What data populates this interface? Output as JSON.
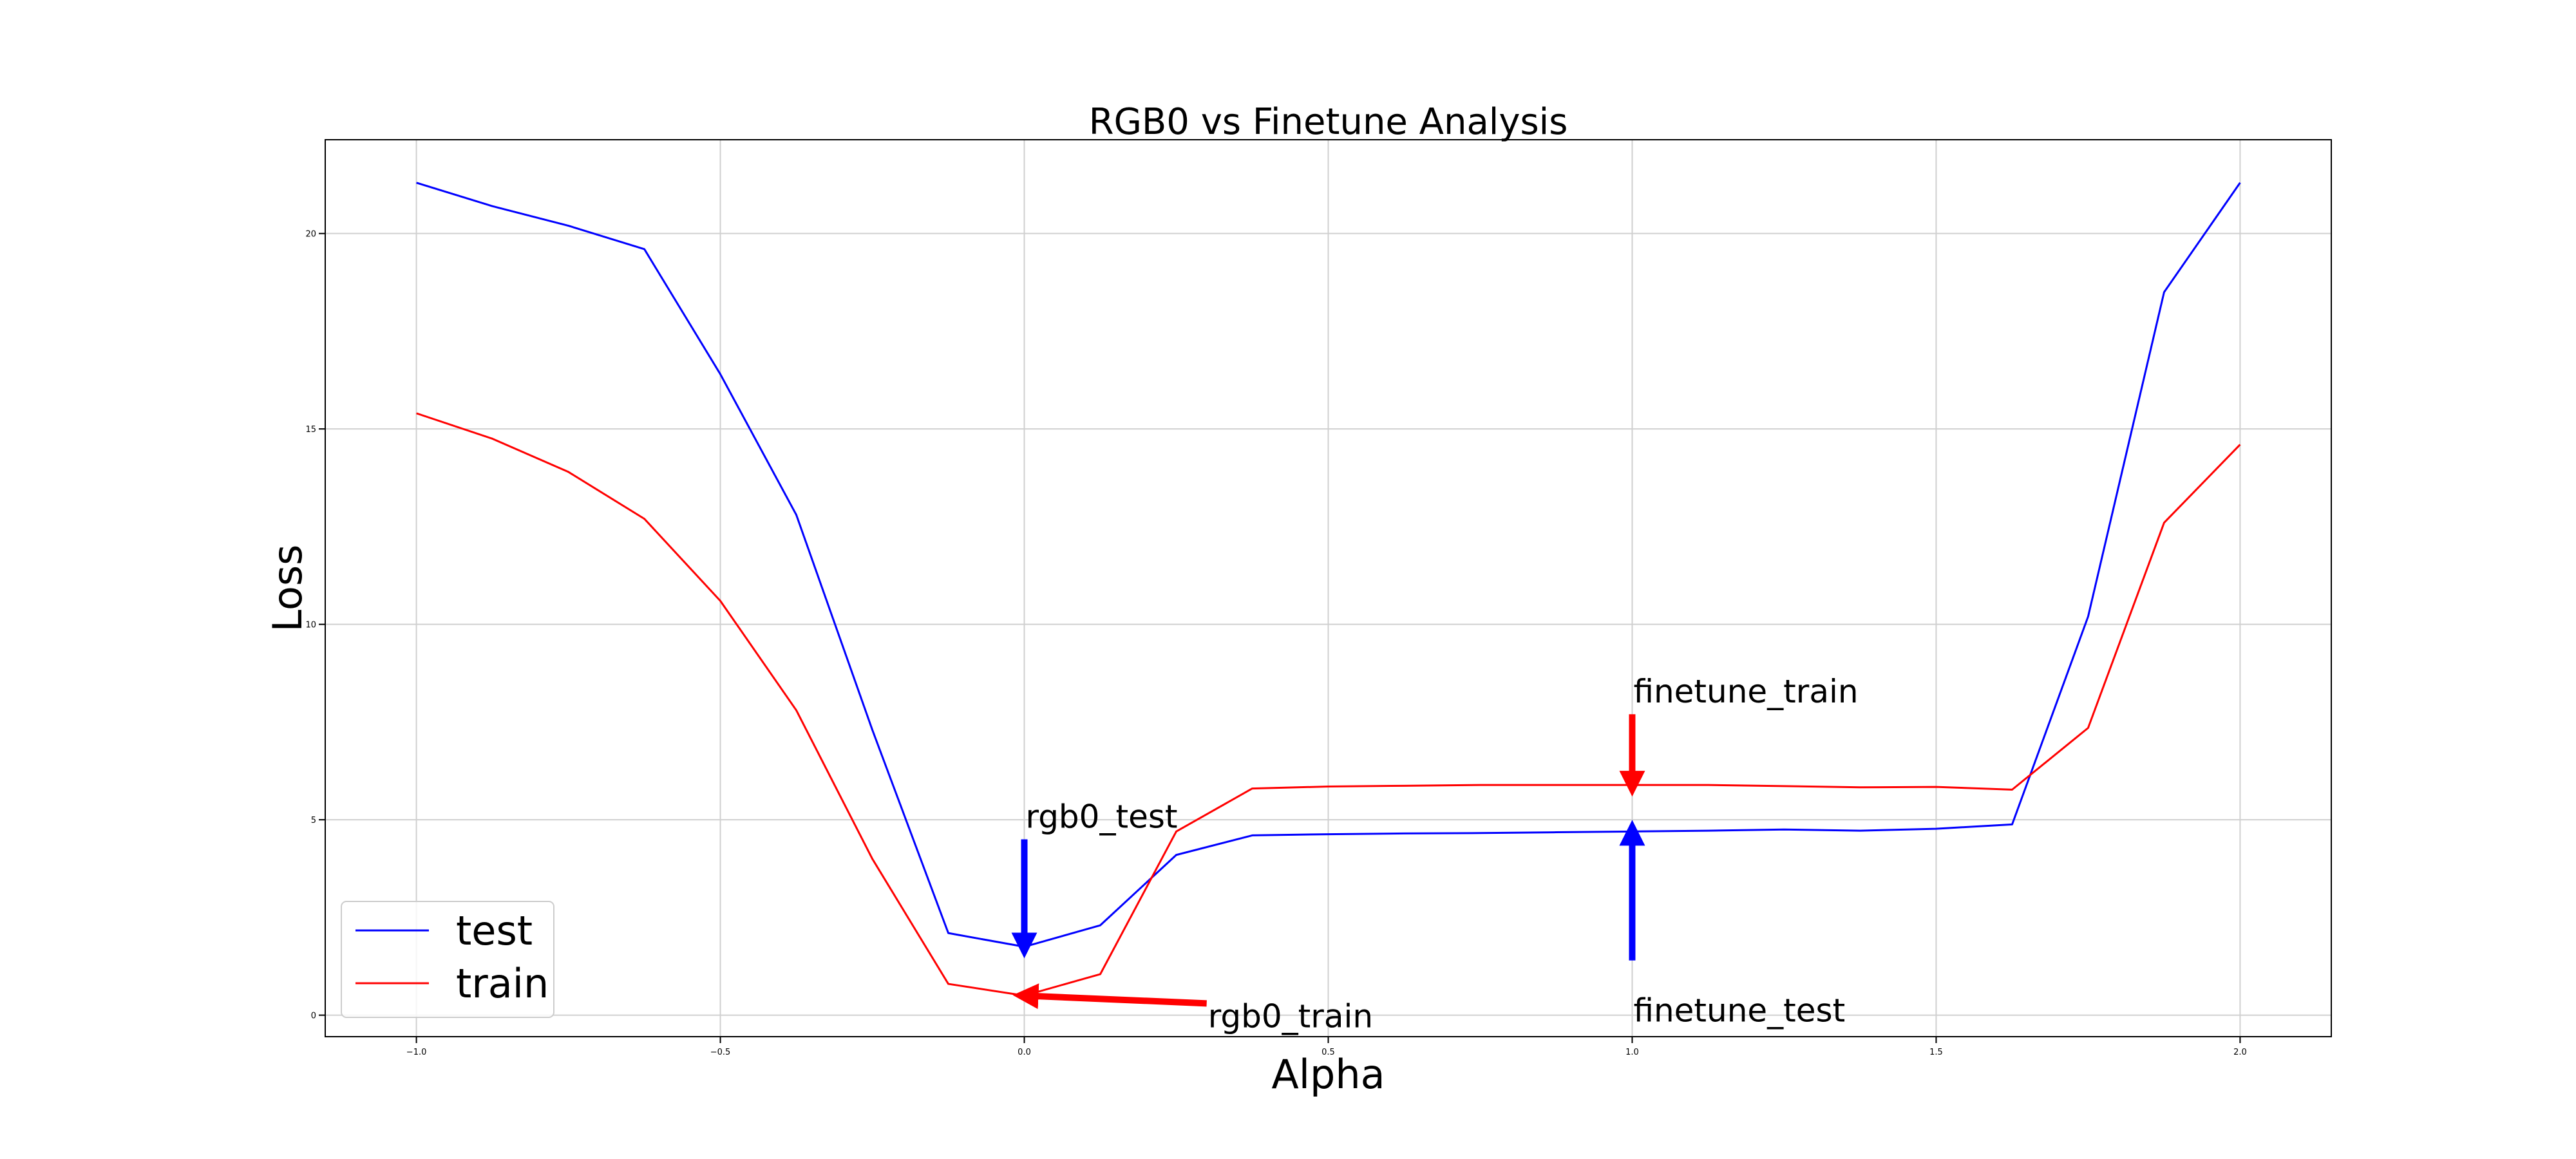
{
  "chart_data": {
    "type": "line",
    "title": "RGB0 vs Finetune Analysis",
    "xlabel": "Alpha",
    "ylabel": "Loss",
    "xlim": [
      -1.15,
      2.15
    ],
    "ylim": [
      -0.55,
      22.4
    ],
    "xticks": [
      -1.0,
      -0.5,
      0.0,
      0.5,
      1.0,
      1.5,
      2.0
    ],
    "xtick_labels": [
      "−1.0",
      "−0.5",
      "0.0",
      "0.5",
      "1.0",
      "1.5",
      "2.0"
    ],
    "yticks": [
      0,
      5,
      10,
      15,
      20
    ],
    "ytick_labels": [
      "0",
      "5",
      "10",
      "15",
      "20"
    ],
    "grid": true,
    "legend_position": "lower-left",
    "x": [
      -1.0,
      -0.875,
      -0.75,
      -0.625,
      -0.5,
      -0.375,
      -0.25,
      -0.125,
      0.0,
      0.125,
      0.25,
      0.375,
      0.5,
      0.625,
      0.75,
      0.875,
      1.0,
      1.125,
      1.25,
      1.375,
      1.5,
      1.625,
      1.75,
      1.875,
      2.0
    ],
    "series": [
      {
        "name": "test",
        "color": "#0000ff",
        "values": [
          21.3,
          20.7,
          20.2,
          19.6,
          16.4,
          12.8,
          7.3,
          2.1,
          1.75,
          2.3,
          4.1,
          4.6,
          4.63,
          4.65,
          4.66,
          4.68,
          4.7,
          4.72,
          4.75,
          4.72,
          4.77,
          4.88,
          10.2,
          18.5,
          21.3
        ]
      },
      {
        "name": "train",
        "color": "#ff0000",
        "values": [
          15.4,
          14.75,
          13.9,
          12.7,
          10.6,
          7.8,
          4.0,
          0.8,
          0.5,
          1.05,
          4.7,
          5.8,
          5.85,
          5.87,
          5.89,
          5.89,
          5.89,
          5.89,
          5.86,
          5.83,
          5.84,
          5.77,
          7.35,
          12.6,
          14.6
        ]
      }
    ],
    "annotations": [
      {
        "text": "rgb0_test",
        "color": "#0000ff",
        "arrow_from": [
          0.0,
          4.5
        ],
        "arrow_to": [
          0.0,
          1.75
        ],
        "text_at": [
          0.0,
          4.6
        ]
      },
      {
        "text": "rgb0_train",
        "color": "#ff0000",
        "arrow_from": [
          0.3,
          0.3
        ],
        "arrow_to": [
          0.0,
          0.5
        ],
        "text_at": [
          0.3,
          0.35
        ]
      },
      {
        "text": "finetune_train",
        "color": "#ff0000",
        "arrow_from": [
          1.0,
          7.7
        ],
        "arrow_to": [
          1.0,
          5.89
        ],
        "text_at": [
          1.0,
          7.8
        ]
      },
      {
        "text": "finetune_test",
        "color": "#0000ff",
        "arrow_from": [
          1.0,
          1.4
        ],
        "arrow_to": [
          1.0,
          4.7
        ],
        "text_at": [
          1.0,
          0.5
        ]
      }
    ]
  }
}
